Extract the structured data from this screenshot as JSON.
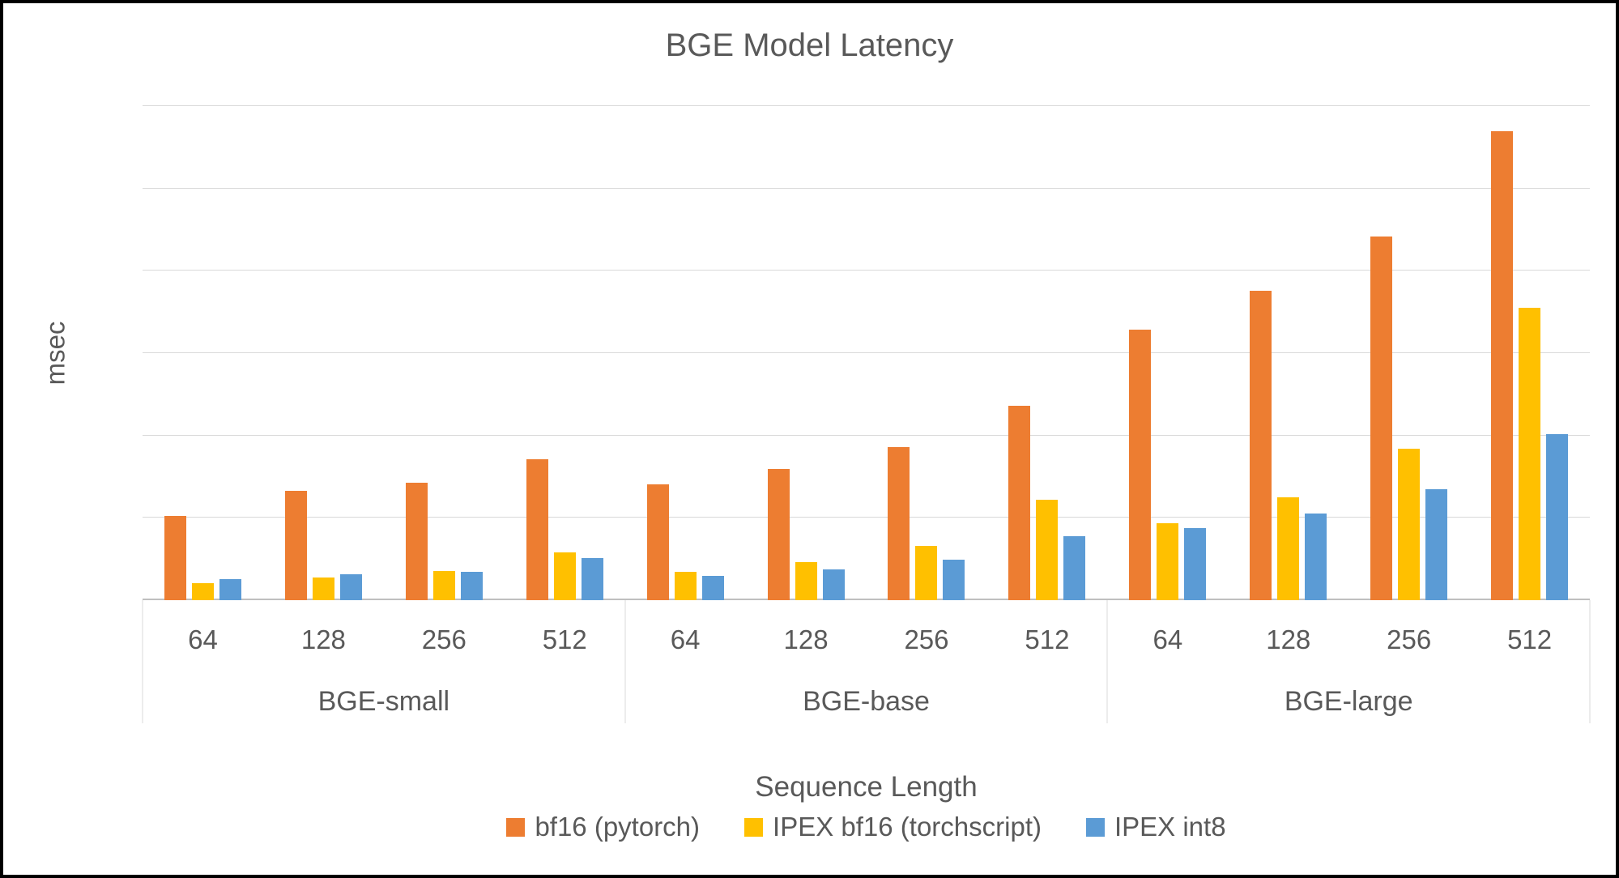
{
  "window": {
    "background": "#FFFFFF",
    "border_color": "#000000",
    "text_color": "#595959",
    "gridline_color": "#D9D9D9",
    "axis_line_color": "#BFBFBF"
  },
  "chart_data": {
    "type": "bar",
    "title": "BGE Model Latency",
    "xlabel": "Sequence Length",
    "ylabel": "msec",
    "ylim": [
      0,
      60
    ],
    "yticks": [
      0,
      10,
      20,
      30,
      40,
      50,
      60
    ],
    "grid": true,
    "legend_position": "bottom",
    "x_groups": [
      {
        "label": "BGE-small",
        "categories": [
          "64",
          "128",
          "256",
          "512"
        ]
      },
      {
        "label": "BGE-base",
        "categories": [
          "64",
          "128",
          "256",
          "512"
        ]
      },
      {
        "label": "BGE-large",
        "categories": [
          "64",
          "128",
          "256",
          "512"
        ]
      }
    ],
    "series": [
      {
        "name": "bf16 (pytorch)",
        "color": "#ED7D31",
        "values": [
          10.2,
          13.3,
          14.3,
          17.1,
          14.1,
          15.9,
          18.6,
          23.6,
          32.9,
          37.6,
          44.2,
          57.0
        ]
      },
      {
        "name": "IPEX bf16 (torchscript)",
        "color": "#FFC000",
        "values": [
          2.1,
          2.8,
          3.5,
          5.8,
          3.4,
          4.6,
          6.6,
          12.2,
          9.3,
          12.5,
          18.4,
          35.5
        ]
      },
      {
        "name": "IPEX int8",
        "color": "#5B9BD5",
        "values": [
          2.6,
          3.1,
          3.4,
          5.1,
          3.0,
          3.7,
          4.9,
          7.8,
          8.8,
          10.5,
          13.5,
          20.2
        ]
      }
    ]
  }
}
